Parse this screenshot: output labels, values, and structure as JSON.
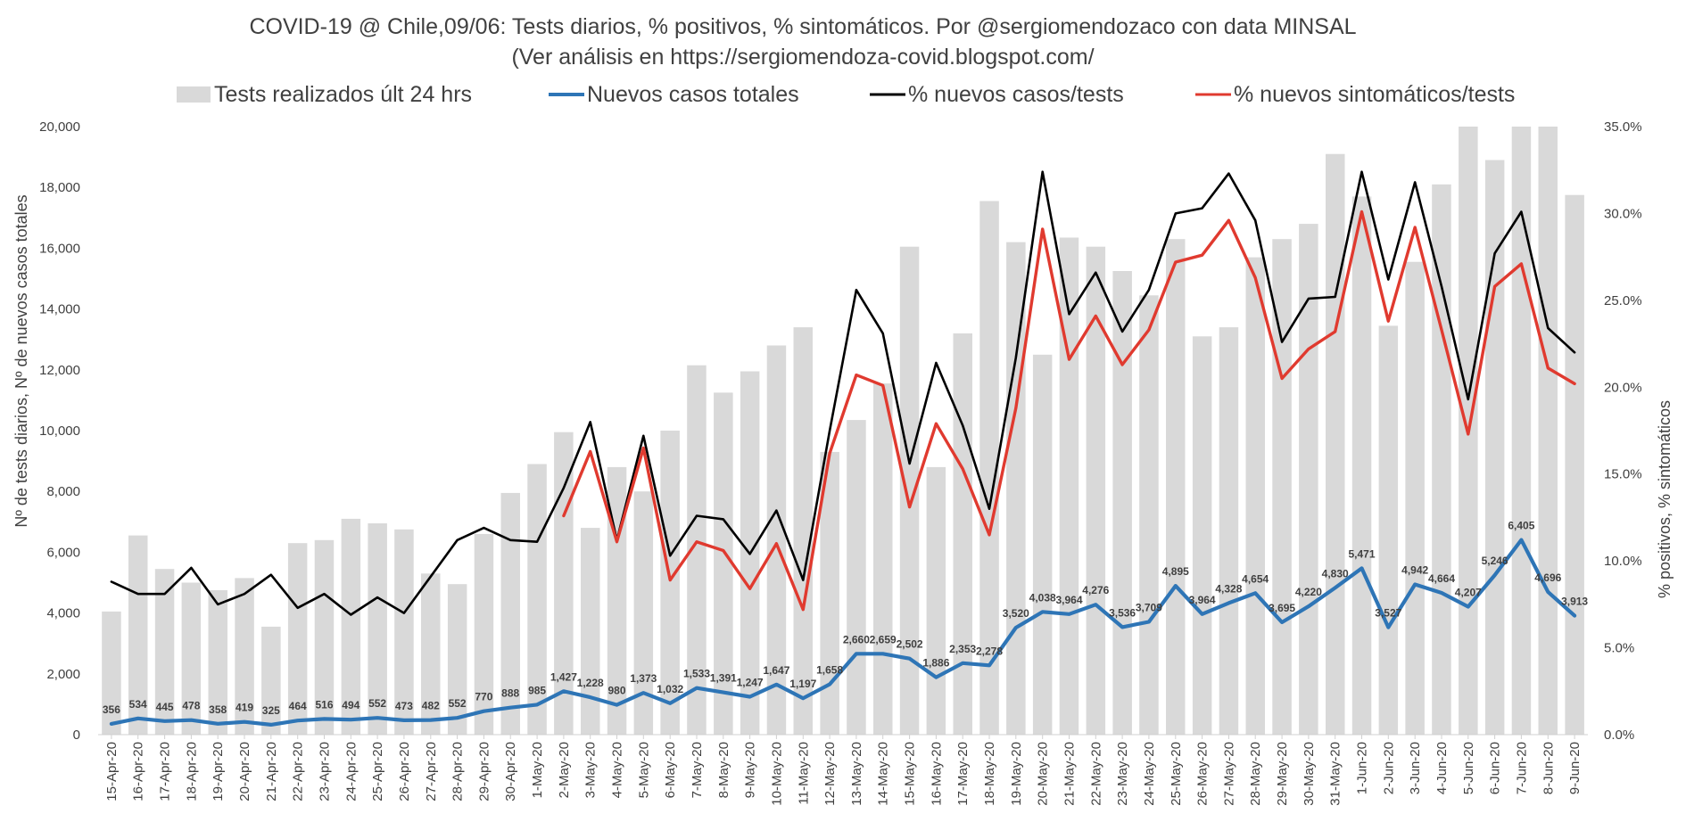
{
  "chart_data": {
    "type": "bar",
    "title": "COVID-19 @ Chile,09/06: Tests diarios, % positivos, % sintomáticos. Por @sergiomendozaco con data MINSAL",
    "subtitle": "(Ver análisis en https://sergiomendoza-covid.blogspot.com/",
    "ylabel": "Nº de tests diarios, Nº de nuevos casos totales",
    "y2label": "% positivos, % sintomáticos",
    "ylim": [
      0,
      20000
    ],
    "y2lim": [
      0,
      35
    ],
    "y_ticks": [
      "0",
      "2,000",
      "4,000",
      "6,000",
      "8,000",
      "10,000",
      "12,000",
      "14,000",
      "16,000",
      "18,000",
      "20,000"
    ],
    "y2_ticks": [
      "0.0%",
      "5.0%",
      "10.0%",
      "15.0%",
      "20.0%",
      "25.0%",
      "30.0%",
      "35.0%"
    ],
    "categories": [
      "15-Apr-20",
      "16-Apr-20",
      "17-Apr-20",
      "18-Apr-20",
      "19-Apr-20",
      "20-Apr-20",
      "21-Apr-20",
      "22-Apr-20",
      "23-Apr-20",
      "24-Apr-20",
      "25-Apr-20",
      "26-Apr-20",
      "27-Apr-20",
      "28-Apr-20",
      "29-Apr-20",
      "30-Apr-20",
      "1-May-20",
      "2-May-20",
      "3-May-20",
      "4-May-20",
      "5-May-20",
      "6-May-20",
      "7-May-20",
      "8-May-20",
      "9-May-20",
      "10-May-20",
      "11-May-20",
      "12-May-20",
      "13-May-20",
      "14-May-20",
      "15-May-20",
      "16-May-20",
      "17-May-20",
      "18-May-20",
      "19-May-20",
      "20-May-20",
      "21-May-20",
      "22-May-20",
      "23-May-20",
      "24-May-20",
      "25-May-20",
      "26-May-20",
      "27-May-20",
      "28-May-20",
      "29-May-20",
      "30-May-20",
      "31-May-20",
      "1-Jun-20",
      "2-Jun-20",
      "3-Jun-20",
      "4-Jun-20",
      "5-Jun-20",
      "6-Jun-20",
      "7-Jun-20",
      "8-Jun-20",
      "9-Jun-20"
    ],
    "series": [
      {
        "name": "Tests realizados últ 24 hrs",
        "type": "bar",
        "axis": "left",
        "color": "#d9d9d9",
        "values": [
          4050,
          6550,
          5450,
          5000,
          4750,
          5150,
          3550,
          6300,
          6400,
          7100,
          6950,
          6750,
          5300,
          4950,
          6600,
          7950,
          8900,
          9950,
          6800,
          8800,
          8000,
          10000,
          12150,
          11250,
          11950,
          12800,
          13400,
          9300,
          10350,
          11550,
          16050,
          8800,
          13200,
          17550,
          16200,
          12500,
          16350,
          16050,
          15250,
          14450,
          16300,
          13100,
          13400,
          15700,
          16300,
          16800,
          19100,
          17700,
          13450,
          15550,
          18100,
          20050,
          18900,
          20050,
          20050,
          17750
        ]
      },
      {
        "name": "Nuevos casos totales",
        "type": "line",
        "axis": "left",
        "color": "#2e75b6",
        "values": [
          356,
          534,
          445,
          478,
          358,
          419,
          325,
          464,
          516,
          494,
          552,
          473,
          482,
          552,
          770,
          888,
          985,
          1427,
          1228,
          980,
          1373,
          1032,
          1533,
          1391,
          1247,
          1647,
          1197,
          1658,
          2660,
          2659,
          2502,
          1886,
          2353,
          2278,
          3520,
          4038,
          3964,
          4276,
          3536,
          3709,
          4895,
          3964,
          4328,
          4654,
          3695,
          4220,
          4830,
          5471,
          3527,
          4942,
          4664,
          4207,
          5246,
          6405,
          4696,
          3913
        ],
        "labels": [
          "356",
          "534",
          "445",
          "478",
          "358",
          "419",
          "325",
          "464",
          "516",
          "494",
          "552",
          "473",
          "482",
          "552",
          "770",
          "888",
          "985",
          "1,427",
          "1,228",
          "980",
          "1,373",
          "1,032",
          "1,533",
          "1,391",
          "1,247",
          "1,647",
          "1,197",
          "1,658",
          "2,660",
          "2,659",
          "2,502",
          "1,886",
          "2,353",
          "2,278",
          "3,520",
          "4,038",
          "3,964",
          "4,276",
          "3,536",
          "3,709",
          "4,895",
          "3,964",
          "4,328",
          "4,654",
          "3,695",
          "4,220",
          "4,830",
          "5,471",
          "3,527",
          "4,942",
          "4,664",
          "4,207",
          "5,246",
          "6,405",
          "4,696",
          "3,913"
        ]
      },
      {
        "name": "% nuevos casos/tests",
        "type": "line",
        "axis": "right",
        "color": "#000000",
        "values": [
          8.8,
          8.1,
          8.1,
          9.6,
          7.5,
          8.1,
          9.2,
          7.3,
          8.1,
          6.9,
          7.9,
          7.0,
          9.1,
          11.2,
          11.9,
          11.2,
          11.1,
          14.2,
          18.0,
          11.2,
          17.2,
          10.3,
          12.6,
          12.4,
          10.4,
          12.9,
          8.9,
          17.5,
          25.6,
          23.1,
          15.6,
          21.4,
          17.8,
          13.0,
          21.7,
          32.4,
          24.2,
          26.6,
          23.2,
          25.6,
          30.0,
          30.3,
          32.3,
          29.6,
          22.6,
          25.1,
          25.2,
          32.4,
          26.2,
          31.8,
          25.8,
          19.3,
          27.7,
          30.1,
          23.4,
          22.0
        ]
      },
      {
        "name": "% nuevos sintomáticos/tests",
        "type": "line",
        "axis": "right",
        "color": "#e03a2f",
        "values": [
          null,
          null,
          null,
          null,
          null,
          null,
          null,
          null,
          null,
          null,
          null,
          null,
          null,
          null,
          null,
          null,
          null,
          12.6,
          16.3,
          11.1,
          16.5,
          8.9,
          11.1,
          10.6,
          8.4,
          11.0,
          7.2,
          16.2,
          20.7,
          20.1,
          13.1,
          17.9,
          15.3,
          11.5,
          18.8,
          29.1,
          21.6,
          24.1,
          21.3,
          23.3,
          27.2,
          27.6,
          29.6,
          26.3,
          20.5,
          22.2,
          23.2,
          30.1,
          23.8,
          29.2,
          23.3,
          17.3,
          25.8,
          27.1,
          21.1,
          20.2
        ]
      }
    ],
    "legend": [
      "Tests realizados últ 24 hrs",
      "Nuevos casos totales",
      "% nuevos casos/tests",
      "% nuevos sintomáticos/tests"
    ],
    "legend_position": "top",
    "grid": false
  }
}
